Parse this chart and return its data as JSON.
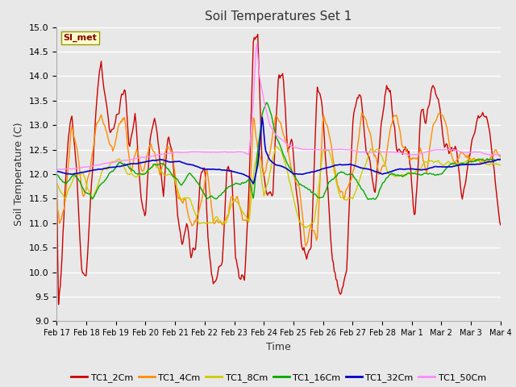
{
  "title": "Soil Temperatures Set 1",
  "xlabel": "Time",
  "ylabel": "Soil Temperature (C)",
  "ylim": [
    9.0,
    15.0
  ],
  "yticks": [
    9.0,
    9.5,
    10.0,
    10.5,
    11.0,
    11.5,
    12.0,
    12.5,
    13.0,
    13.5,
    14.0,
    14.5,
    15.0
  ],
  "xtick_labels": [
    "Feb 17",
    "Feb 18",
    "Feb 19",
    "Feb 20",
    "Feb 21",
    "Feb 22",
    "Feb 23",
    "Feb 24",
    "Feb 25",
    "Feb 26",
    "Feb 27",
    "Feb 28",
    "Mar 1",
    "Mar 2",
    "Mar 3",
    "Mar 4"
  ],
  "series": {
    "TC1_2Cm": {
      "color": "#CC0000",
      "lw": 1.0
    },
    "TC1_4Cm": {
      "color": "#FF8C00",
      "lw": 1.0
    },
    "TC1_8Cm": {
      "color": "#CCCC00",
      "lw": 1.0
    },
    "TC1_16Cm": {
      "color": "#00AA00",
      "lw": 1.0
    },
    "TC1_32Cm": {
      "color": "#0000CC",
      "lw": 1.2
    },
    "TC1_50Cm": {
      "color": "#FF88FF",
      "lw": 1.0
    }
  },
  "annotation_text": "SI_met",
  "annotation_color": "#880000",
  "bg_color": "#E8E8E8",
  "grid_color": "#FFFFFF",
  "n_points": 500
}
